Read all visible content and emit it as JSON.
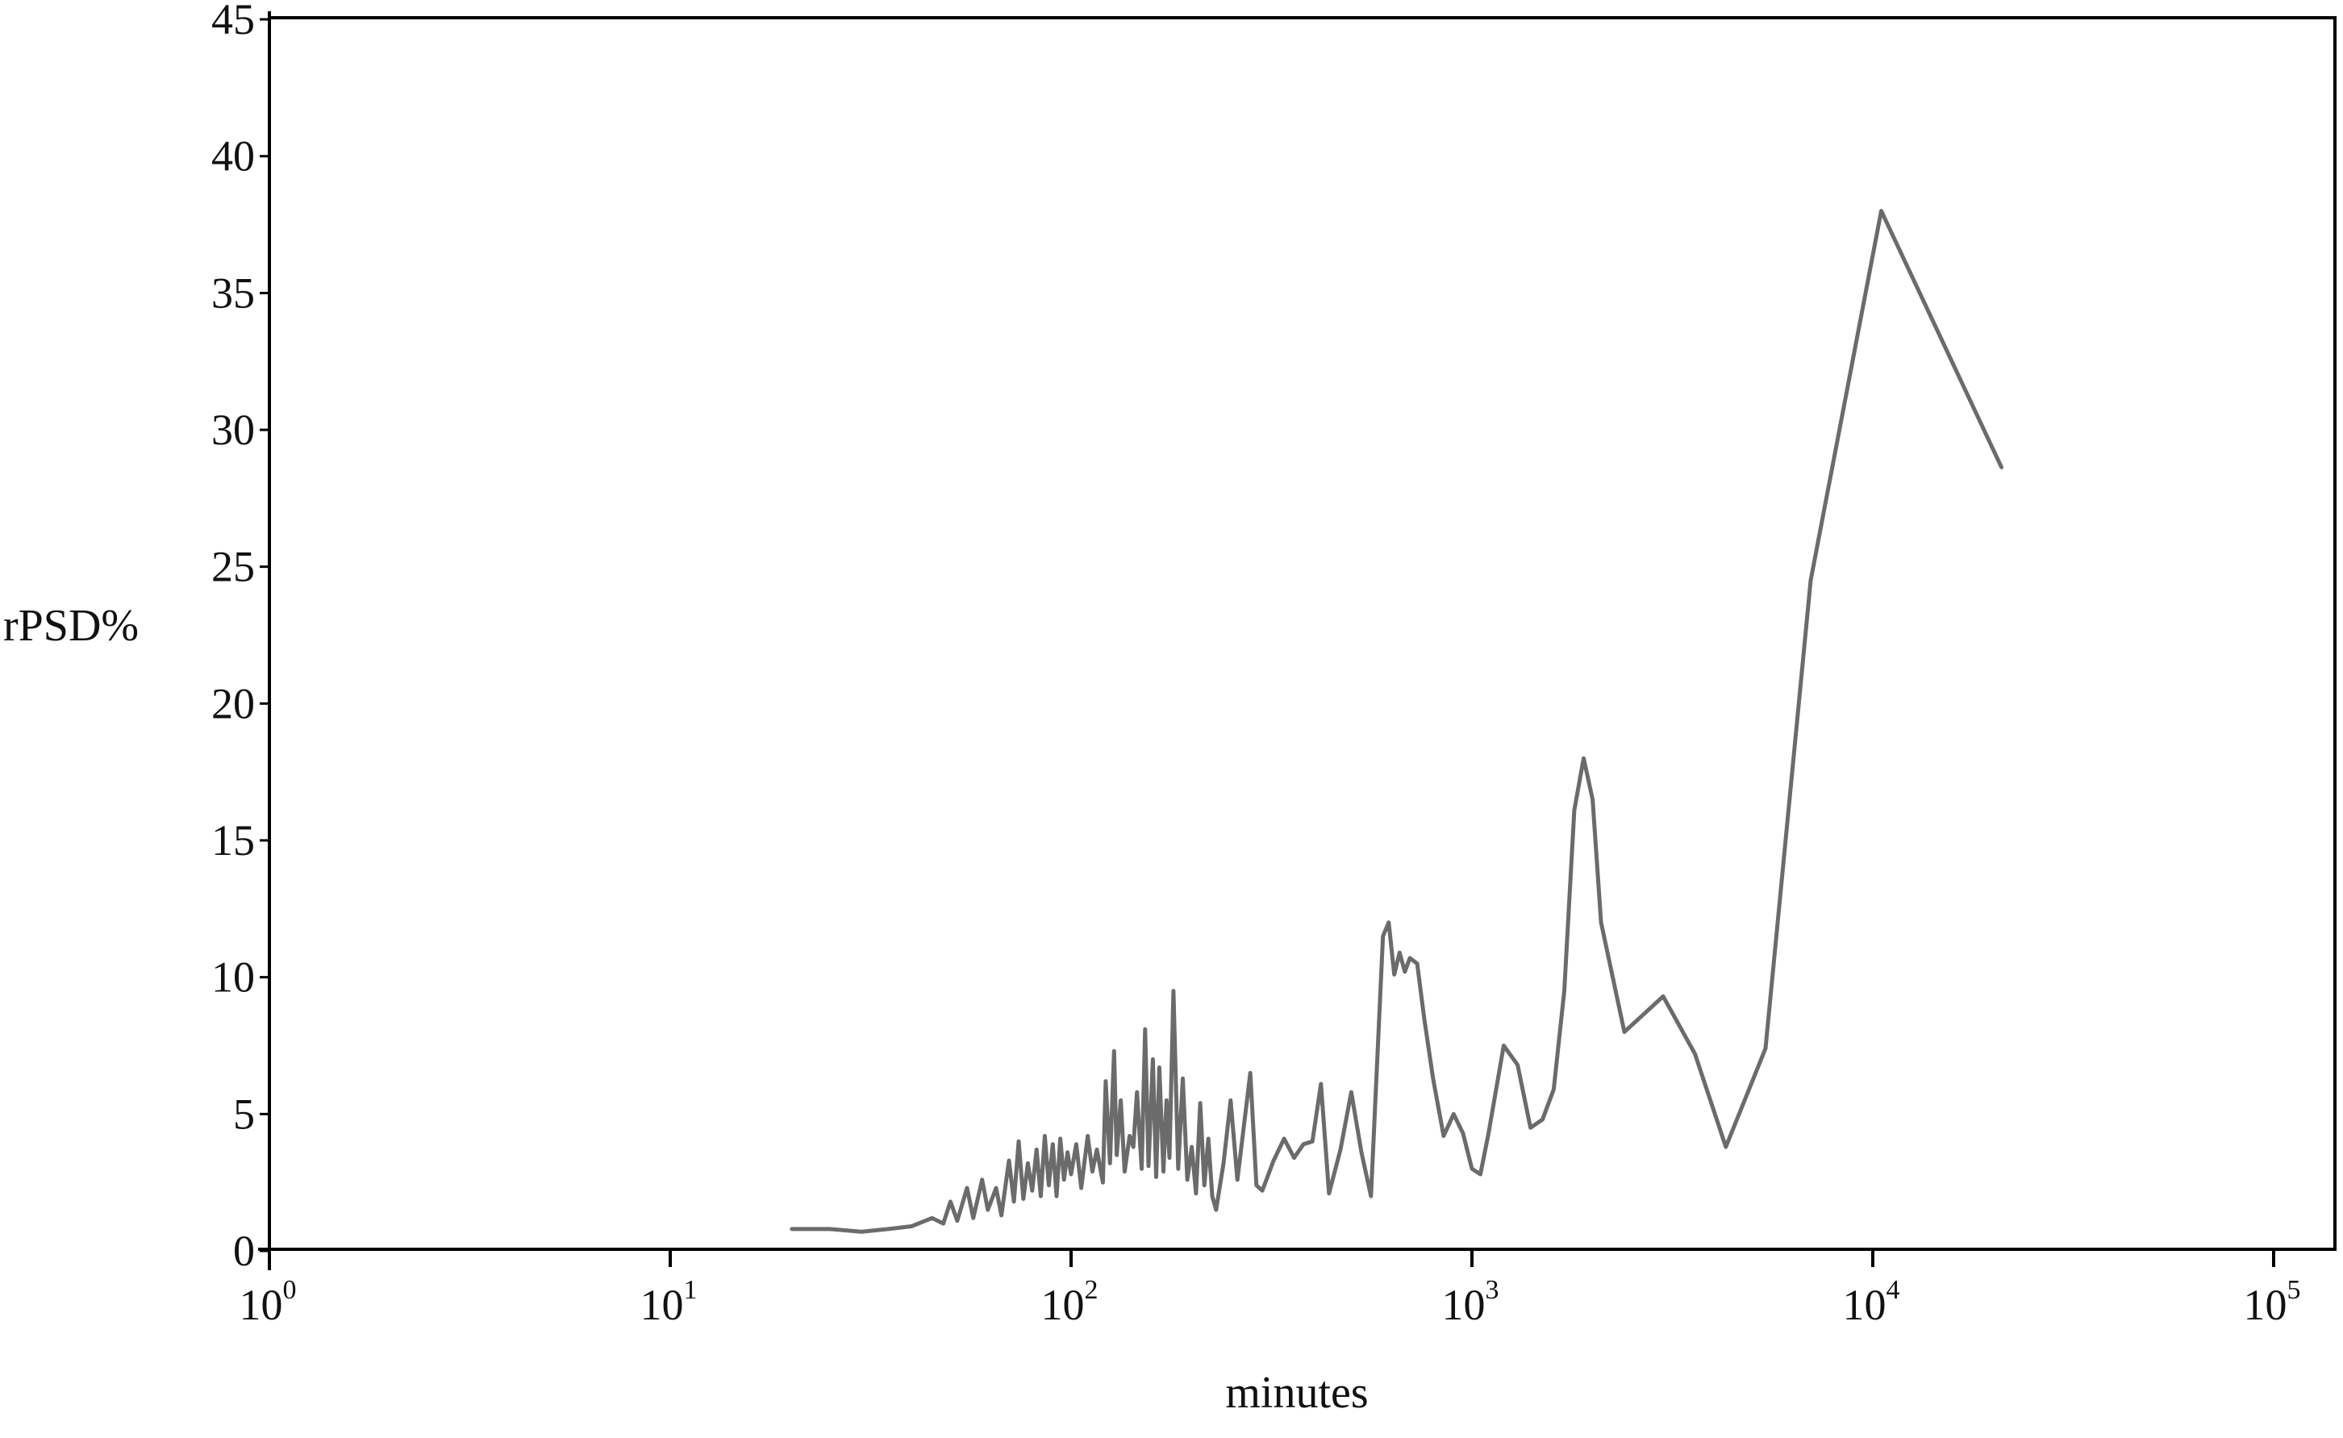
{
  "chart_data": {
    "type": "line",
    "title": "",
    "xlabel": "minutes",
    "ylabel": "rPSD%",
    "x_scale": "log",
    "xlim": [
      1,
      100000
    ],
    "ylim": [
      0,
      45
    ],
    "y_ticks": [
      0,
      5,
      10,
      15,
      20,
      25,
      30,
      35,
      40,
      45
    ],
    "x_ticks": [
      {
        "base": "10",
        "exp": "0",
        "value": 1
      },
      {
        "base": "10",
        "exp": "1",
        "value": 10
      },
      {
        "base": "10",
        "exp": "2",
        "value": 100
      },
      {
        "base": "10",
        "exp": "3",
        "value": 1000
      },
      {
        "base": "10",
        "exp": "4",
        "value": 10000
      },
      {
        "base": "10",
        "exp": "5",
        "value": 100000
      }
    ],
    "grid": false,
    "legend": "none",
    "line_color": "#6b6b6b",
    "series": [
      {
        "x": [
          20,
          25,
          30,
          35,
          40,
          45,
          48,
          50,
          52,
          55,
          57,
          60,
          62,
          65,
          67,
          70,
          72,
          74,
          76,
          78,
          80,
          82,
          84,
          86,
          88,
          90,
          92,
          94,
          96,
          98,
          100,
          103,
          106,
          110,
          113,
          116,
          120,
          122,
          125,
          128,
          130,
          133,
          136,
          140,
          143,
          146,
          150,
          153,
          156,
          160,
          163,
          166,
          170,
          173,
          176,
          180,
          185,
          190,
          195,
          200,
          205,
          210,
          215,
          220,
          225,
          230,
          240,
          250,
          260,
          270,
          280,
          290,
          300,
          320,
          340,
          360,
          380,
          400,
          420,
          440,
          470,
          500,
          530,
          560,
          600,
          620,
          640,
          660,
          680,
          700,
          730,
          760,
          800,
          850,
          900,
          950,
          1000,
          1050,
          1100,
          1200,
          1300,
          1400,
          1500,
          1600,
          1700,
          1800,
          1900,
          2000,
          2100,
          2400,
          3000,
          3600,
          4300,
          5400,
          7000,
          10500,
          21000
        ],
        "y": [
          0.8,
          0.8,
          0.7,
          0.8,
          0.9,
          1.2,
          1.0,
          1.8,
          1.1,
          2.3,
          1.2,
          2.6,
          1.5,
          2.3,
          1.3,
          3.3,
          1.8,
          4.0,
          1.9,
          3.2,
          2.2,
          3.7,
          2.0,
          4.2,
          2.4,
          3.9,
          2.0,
          4.1,
          2.6,
          3.6,
          2.8,
          3.9,
          2.3,
          4.2,
          2.9,
          3.7,
          2.5,
          6.2,
          3.2,
          7.3,
          3.5,
          5.5,
          2.9,
          4.2,
          3.8,
          5.8,
          3.0,
          8.1,
          3.1,
          7.0,
          2.7,
          6.7,
          2.9,
          5.5,
          3.4,
          9.5,
          3.0,
          6.3,
          2.6,
          3.8,
          2.1,
          5.4,
          2.4,
          4.1,
          2.0,
          1.5,
          3.2,
          5.5,
          2.6,
          4.6,
          6.5,
          2.4,
          2.2,
          3.3,
          4.1,
          3.4,
          3.9,
          4.0,
          6.1,
          2.1,
          3.7,
          5.8,
          3.6,
          2.0,
          11.5,
          12.0,
          10.1,
          10.9,
          10.2,
          10.7,
          10.5,
          8.5,
          6.3,
          4.2,
          5.0,
          4.3,
          3.0,
          2.8,
          4.3,
          7.5,
          6.8,
          4.5,
          4.8,
          5.9,
          9.5,
          16.1,
          18.0,
          16.5,
          12.0,
          8.0,
          9.3,
          7.2,
          3.8,
          7.4,
          24.5,
          38.0,
          28.6
        ]
      }
    ]
  }
}
